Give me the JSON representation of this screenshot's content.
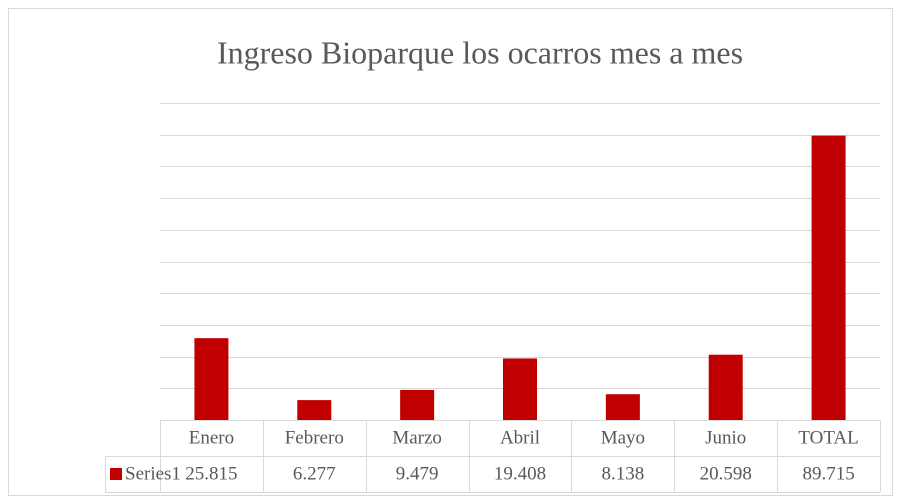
{
  "chart_data": {
    "type": "bar",
    "title": "Ingreso Bioparque los ocarros mes a mes",
    "categories": [
      "Enero",
      "Febrero",
      "Marzo",
      "Abril",
      "Mayo",
      "Junio",
      "TOTAL"
    ],
    "series": [
      {
        "name": "Series1",
        "color": "#c00000",
        "values": [
          25815,
          6277,
          9479,
          19408,
          8138,
          20598,
          89715
        ],
        "value_labels": [
          "25.815",
          "6.277",
          "9.479",
          "19.408",
          "8.138",
          "20.598",
          "89.715"
        ]
      }
    ],
    "ylim": [
      0,
      100000
    ],
    "yticks": [
      0,
      10000,
      20000,
      30000,
      40000,
      50000,
      60000,
      70000,
      80000,
      90000,
      100000
    ],
    "grid": true
  }
}
